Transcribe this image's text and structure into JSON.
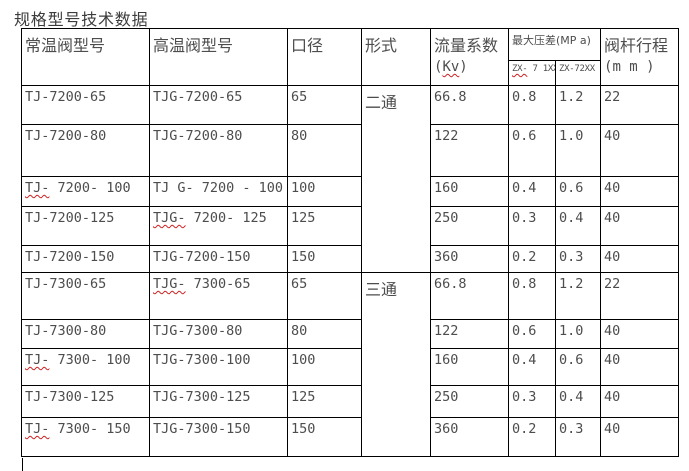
{
  "page": {
    "title": "规格型号技术数据"
  },
  "colors": {
    "border": "#000000",
    "text": "#4d4d4d",
    "title_text": "#3c3c3c",
    "spellcheck_red": "#cc2020",
    "background": "#ffffff"
  },
  "table": {
    "headers": {
      "normal_model": "常温阀型号",
      "high_temp_model": "高温阀型号",
      "diameter": "口径",
      "form": "形式",
      "flow_coeff_line1": "流量系数",
      "flow_coeff_open": "(",
      "flow_coeff_flagged": "Kv",
      "flow_coeff_close": ")",
      "max_pressure_diff": "最大压差(MP a)",
      "sub_zx71_flagged": "ZX-",
      "sub_zx71_rest": " 7 1XX",
      "sub_zx72": "ZX-72XX",
      "stem_travel_line1": "阀杆行程",
      "stem_travel_line2": "(m m )"
    },
    "form_groups": [
      {
        "label": "二通",
        "rows": 5
      },
      {
        "label": "三通",
        "rows": 5
      }
    ],
    "rows": [
      {
        "normal_flag": "",
        "normal_rest": "TJ-7200-65",
        "high_flag": "",
        "high_rest": "TJG-7200-65",
        "diameter": "65",
        "kv": "66.8",
        "zx71": "0.8",
        "zx72": "1.2",
        "travel": "22"
      },
      {
        "normal_flag": "",
        "normal_rest": "TJ-7200-80",
        "high_flag": "",
        "high_rest": "TJG-7200-80",
        "diameter": "80",
        "kv": "122",
        "zx71": "0.6",
        "zx72": "1.0",
        "travel": "40"
      },
      {
        "normal_flag": "TJ-",
        "normal_rest": " 7200- 100",
        "high_flag": "",
        "high_rest": "TJ G- 7200 - 100",
        "diameter": "100",
        "kv": "160",
        "zx71": "0.4",
        "zx72": "0.6",
        "travel": "40"
      },
      {
        "normal_flag": "",
        "normal_rest": "TJ-7200-125",
        "high_flag": "TJG-",
        "high_rest": " 7200- 125",
        "diameter": "125",
        "kv": "250",
        "zx71": "0.3",
        "zx72": "0.4",
        "travel": "40"
      },
      {
        "normal_flag": "",
        "normal_rest": "TJ-7200-150",
        "high_flag": "",
        "high_rest": "TJG-7200-150",
        "diameter": "150",
        "kv": "360",
        "zx71": "0.2",
        "zx72": "0.3",
        "travel": "40"
      },
      {
        "normal_flag": "",
        "normal_rest": "TJ-7300-65",
        "high_flag": "TJG-",
        "high_rest": " 7300-65",
        "diameter": "65",
        "kv": "66.8",
        "zx71": "0.8",
        "zx72": "1.2",
        "travel": "22"
      },
      {
        "normal_flag": "",
        "normal_rest": "TJ-7300-80",
        "high_flag": "",
        "high_rest": "TJG-7300-80",
        "diameter": "80",
        "kv": "122",
        "zx71": "0.6",
        "zx72": "1.0",
        "travel": "40"
      },
      {
        "normal_flag": "TJ-",
        "normal_rest": " 7300- 100",
        "high_flag": "",
        "high_rest": "TJG-7300-100",
        "diameter": "100",
        "kv": "160",
        "zx71": "0.4",
        "zx72": "0.6",
        "travel": "40"
      },
      {
        "normal_flag": "",
        "normal_rest": "TJ-7300-125",
        "high_flag": "",
        "high_rest": "TJG-7300-125",
        "diameter": "125",
        "kv": "250",
        "zx71": "0.3",
        "zx72": "0.4",
        "travel": "40"
      },
      {
        "normal_flag": "TJ-",
        "normal_rest": " 7300- 150",
        "high_flag": "",
        "high_rest": "TJG-7300-150",
        "diameter": "150",
        "kv": "360",
        "zx71": "0.2",
        "zx72": "0.3",
        "travel": "40"
      }
    ]
  }
}
